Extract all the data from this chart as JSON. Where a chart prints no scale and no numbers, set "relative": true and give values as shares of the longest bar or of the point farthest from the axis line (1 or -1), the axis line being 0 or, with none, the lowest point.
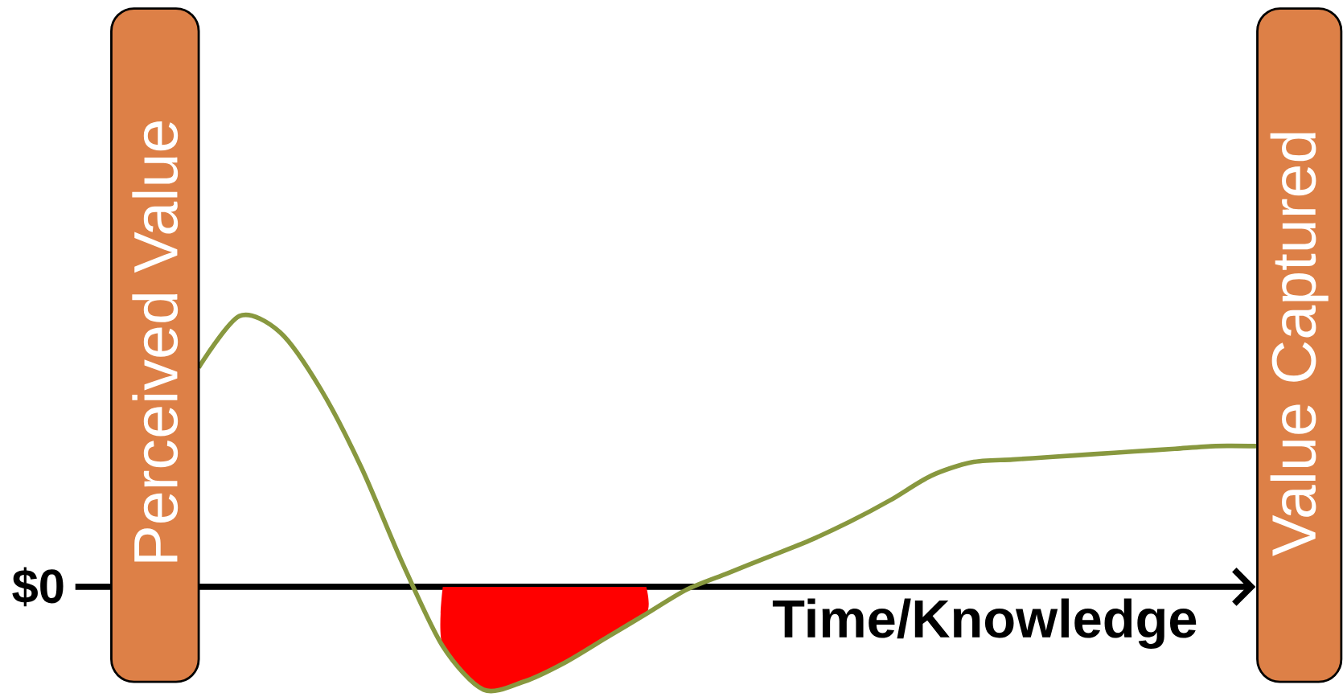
{
  "chart_data": {
    "type": "line",
    "relative": true,
    "categories": [
      null,
      null,
      null,
      null,
      null,
      null,
      null,
      null,
      null,
      null,
      null,
      null,
      null,
      null,
      null,
      null,
      null,
      null,
      null,
      null,
      null,
      null,
      null,
      null,
      null,
      null,
      null
    ],
    "xlabel": "Time/Knowledge",
    "annotations": [
      "Perceived Value",
      "Value Captured"
    ],
    "ref_lines": [
      {
        "axis": "y",
        "value": 0,
        "label": "$0",
        "color": "#000000"
      }
    ],
    "series": [
      {
        "color": "#88983f",
        "values": [
          0.81,
          1,
          0.94,
          0.73,
          0.44,
          0.09,
          -0.22,
          -0.38,
          -0.35,
          -0.28,
          -0.19,
          -0.1,
          -0.01,
          0.05,
          0.11,
          0.17,
          0.24,
          0.32,
          0.41,
          0.46,
          0.47,
          0.48,
          0.49,
          0.5,
          0.51,
          0.52,
          0.52
        ]
      },
      {
        "type": "area",
        "color": "#ff0000",
        "values": [
          null,
          null,
          null,
          null,
          null,
          null,
          -0.22,
          -0.38,
          -0.35,
          -0.28,
          -0.19,
          -0.1,
          null,
          null,
          null,
          null,
          null,
          null,
          null,
          null,
          null,
          null,
          null,
          null,
          null,
          null,
          null
        ]
      }
    ]
  }
}
